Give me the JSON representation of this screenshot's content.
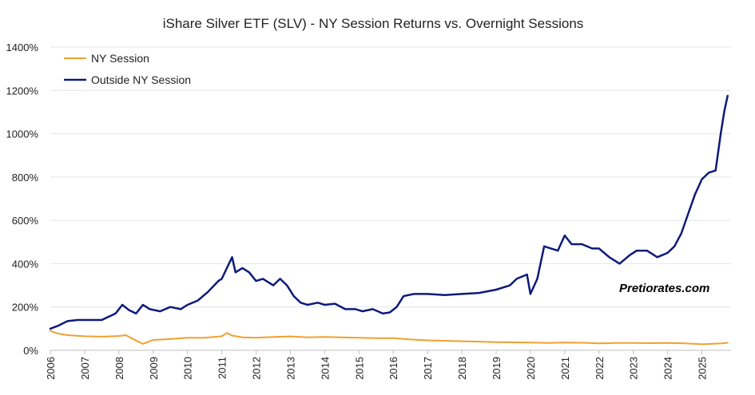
{
  "chart_data": {
    "type": "line",
    "title": "iShare Silver ETF (SLV) - NY Session Returns vs. Overnight Sessions",
    "xlabel": "",
    "ylabel": "",
    "xlim": [
      2006,
      2025.85
    ],
    "ylim": [
      0,
      1400
    ],
    "y_tick_labels": [
      "0%",
      "200%",
      "400%",
      "600%",
      "800%",
      "1000%",
      "1200%",
      "1400%"
    ],
    "x_tick_labels": [
      "2006",
      "2007",
      "2008",
      "2009",
      "2010",
      "2011",
      "2012",
      "2013",
      "2014",
      "2015",
      "2016",
      "2017",
      "2018",
      "2019",
      "2020",
      "2021",
      "2022",
      "2023",
      "2024",
      "2025"
    ],
    "watermark": "Pretiorates.com",
    "legend_position": "top-left",
    "series": [
      {
        "name": "NY Session",
        "color": "#f0a030",
        "x": [
          2006.0,
          2006.2,
          2006.5,
          2007.0,
          2007.5,
          2008.0,
          2008.2,
          2008.5,
          2008.7,
          2009.0,
          2009.5,
          2010.0,
          2010.5,
          2011.0,
          2011.15,
          2011.3,
          2011.6,
          2012.0,
          2012.5,
          2013.0,
          2013.5,
          2014.0,
          2014.5,
          2015.0,
          2015.5,
          2016.0,
          2016.5,
          2017.0,
          2017.5,
          2018.0,
          2018.5,
          2019.0,
          2019.5,
          2020.0,
          2020.5,
          2021.0,
          2021.5,
          2022.0,
          2022.5,
          2023.0,
          2023.5,
          2024.0,
          2024.5,
          2025.0,
          2025.3,
          2025.6,
          2025.75
        ],
        "values": [
          90,
          78,
          70,
          65,
          63,
          66,
          70,
          45,
          30,
          48,
          52,
          58,
          58,
          65,
          80,
          68,
          60,
          58,
          62,
          64,
          60,
          62,
          60,
          58,
          56,
          56,
          50,
          46,
          44,
          42,
          40,
          38,
          37,
          36,
          34,
          36,
          35,
          32,
          34,
          34,
          33,
          34,
          32,
          28,
          30,
          32,
          35
        ]
      },
      {
        "name": "Outside NY Session",
        "color": "#0d1a7a",
        "x": [
          2006.0,
          2006.25,
          2006.5,
          2006.8,
          2007.0,
          2007.5,
          2007.9,
          2008.1,
          2008.3,
          2008.5,
          2008.7,
          2008.9,
          2009.2,
          2009.5,
          2009.8,
          2010.0,
          2010.3,
          2010.6,
          2010.9,
          2011.0,
          2011.15,
          2011.3,
          2011.4,
          2011.6,
          2011.8,
          2012.0,
          2012.2,
          2012.5,
          2012.7,
          2012.9,
          2013.1,
          2013.3,
          2013.5,
          2013.8,
          2014.0,
          2014.3,
          2014.6,
          2014.9,
          2015.1,
          2015.4,
          2015.7,
          2015.9,
          2016.1,
          2016.3,
          2016.6,
          2017.0,
          2017.5,
          2018.0,
          2018.5,
          2019.0,
          2019.4,
          2019.6,
          2019.9,
          2020.0,
          2020.2,
          2020.4,
          2020.6,
          2020.8,
          2021.0,
          2021.2,
          2021.5,
          2021.8,
          2022.0,
          2022.3,
          2022.6,
          2022.9,
          2023.1,
          2023.4,
          2023.7,
          2024.0,
          2024.2,
          2024.4,
          2024.6,
          2024.8,
          2025.0,
          2025.2,
          2025.4,
          2025.55,
          2025.65,
          2025.75
        ],
        "values": [
          100,
          115,
          135,
          140,
          140,
          140,
          170,
          210,
          185,
          170,
          210,
          190,
          180,
          200,
          190,
          210,
          230,
          270,
          320,
          330,
          380,
          430,
          360,
          380,
          360,
          320,
          330,
          300,
          330,
          300,
          250,
          220,
          210,
          220,
          210,
          215,
          190,
          190,
          180,
          190,
          170,
          175,
          200,
          250,
          260,
          260,
          255,
          260,
          265,
          280,
          300,
          330,
          350,
          260,
          330,
          480,
          470,
          460,
          530,
          490,
          490,
          470,
          470,
          430,
          400,
          440,
          460,
          460,
          430,
          450,
          480,
          540,
          630,
          720,
          790,
          820,
          830,
          1000,
          1100,
          1175
        ]
      }
    ]
  }
}
